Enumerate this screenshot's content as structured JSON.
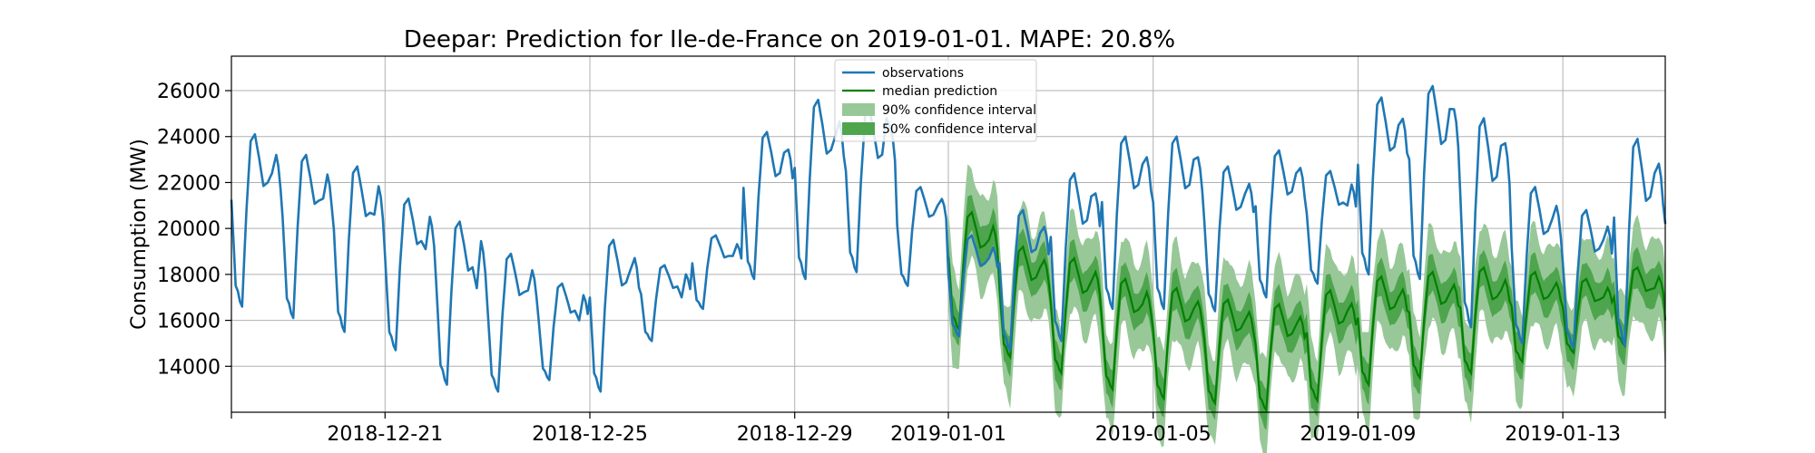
{
  "chart_data": {
    "type": "line",
    "title": "Deepar: Prediction for Ile-de-France on 2019-01-01. MAPE: 20.8%",
    "xlabel": "",
    "ylabel": "Consumption (MW)",
    "x_range": [
      "2018-12-18",
      "2019-01-15"
    ],
    "ylim": [
      12000,
      27500
    ],
    "grid": true,
    "legend_position": "top-center",
    "y_ticks": [
      14000,
      16000,
      18000,
      20000,
      22000,
      24000,
      26000
    ],
    "x_ticks": [
      "2018-12-21",
      "2018-12-25",
      "2018-12-29",
      "2019-01-01",
      "2019-01-05",
      "2019-01-09",
      "2019-01-13"
    ],
    "legend": {
      "observations": "observations",
      "median": "median prediction",
      "ci90": "90% confidence interval",
      "ci50": "50% confidence interval"
    },
    "colors": {
      "observations": "#1f77b4",
      "median": "#008000",
      "ci90": "#98c898",
      "ci50": "#4ea54e"
    },
    "observations": {
      "daily": [
        [
          "2018-12-18",
          16600,
          24100,
          22400
        ],
        [
          "2018-12-19",
          16100,
          23200,
          21300
        ],
        [
          "2018-12-20",
          15500,
          22700,
          20600
        ],
        [
          "2018-12-21",
          14700,
          21300,
          19100
        ],
        [
          "2018-12-22",
          13200,
          20300,
          17400
        ],
        [
          "2018-12-23",
          12900,
          18900,
          17300
        ],
        [
          "2018-12-24",
          13400,
          17600,
          16000
        ],
        [
          "2018-12-25",
          12900,
          19500,
          18200
        ],
        [
          "2018-12-26",
          15100,
          18400,
          17000
        ],
        [
          "2018-12-27",
          16500,
          19700,
          18800
        ],
        [
          "2018-12-28",
          17800,
          24200,
          23300
        ],
        [
          "2018-12-29",
          17800,
          25600,
          24000
        ],
        [
          "2018-12-30",
          18100,
          25200,
          24800
        ],
        [
          "2018-12-31",
          17500,
          21800,
          21000
        ],
        [
          "2019-01-01",
          15300,
          19700,
          18700
        ],
        [
          "2019-01-02",
          14700,
          20800,
          19800
        ],
        [
          "2019-01-03",
          15100,
          22400,
          21400
        ],
        [
          "2019-01-04",
          16500,
          24000,
          22800
        ],
        [
          "2019-01-05",
          16500,
          24000,
          23000
        ],
        [
          "2019-01-06",
          16400,
          22700,
          21500
        ],
        [
          "2019-01-07",
          17000,
          23400,
          22400
        ],
        [
          "2019-01-08",
          17600,
          22500,
          21000
        ],
        [
          "2019-01-09",
          18000,
          25700,
          24500
        ],
        [
          "2019-01-10",
          17800,
          26200,
          25200
        ],
        [
          "2019-01-11",
          15700,
          24800,
          23600
        ],
        [
          "2019-01-12",
          15000,
          21800,
          20400
        ],
        [
          "2019-01-13",
          14800,
          20800,
          19500
        ],
        [
          "2019-01-14",
          14900,
          23900,
          22400
        ]
      ],
      "end_date": "2019-01-15",
      "end_value": 20200
    },
    "prediction": {
      "daily": [
        [
          "2019-01-01",
          15600,
          20700,
          19500
        ],
        [
          "2019-01-02",
          14400,
          19200,
          18300
        ],
        [
          "2019-01-03",
          13700,
          18700,
          17700
        ],
        [
          "2019-01-04",
          13000,
          17800,
          16700
        ],
        [
          "2019-01-05",
          12600,
          17400,
          16500
        ],
        [
          "2019-01-06",
          12400,
          16900,
          16000
        ],
        [
          "2019-01-07",
          12100,
          16700,
          15800
        ],
        [
          "2019-01-08",
          12500,
          17300,
          16400
        ],
        [
          "2019-01-09",
          13200,
          17900,
          17000
        ],
        [
          "2019-01-10",
          13500,
          18100,
          17200
        ],
        [
          "2019-01-11",
          13700,
          18300,
          17300
        ],
        [
          "2019-01-12",
          14200,
          18100,
          17300
        ],
        [
          "2019-01-13",
          14600,
          17800,
          17000
        ],
        [
          "2019-01-14",
          14900,
          18300,
          17400
        ]
      ],
      "end_date": "2019-01-15",
      "end_value": 16000,
      "ci50_halfwidth": 800,
      "ci90_halfwidth": 2000
    }
  }
}
